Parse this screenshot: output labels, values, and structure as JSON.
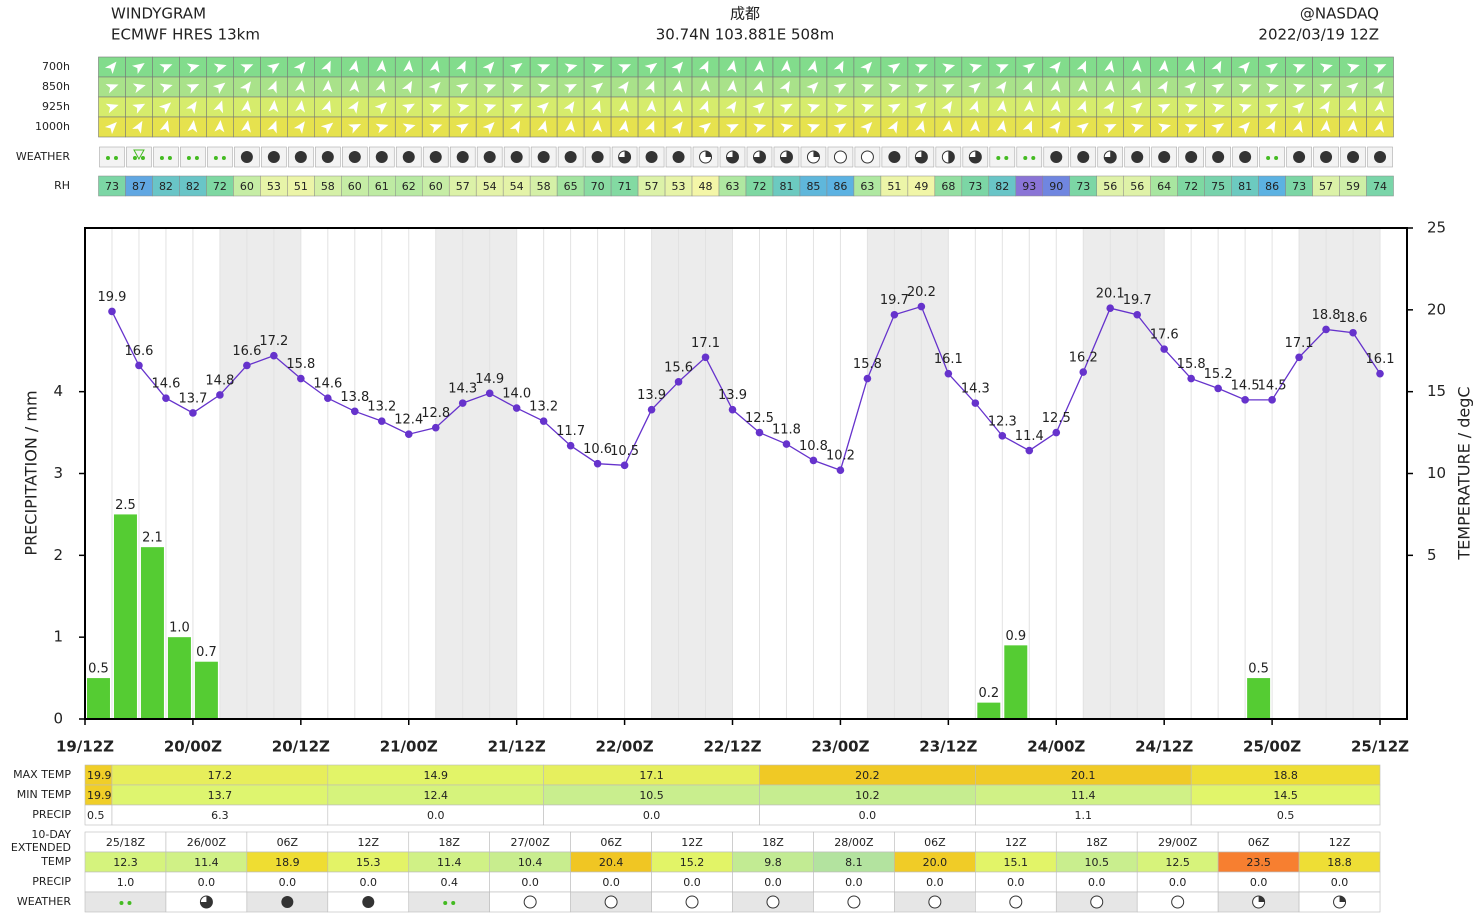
{
  "header": {
    "title": "WINDYGRAM",
    "model": "ECMWF HRES 13km",
    "location": "成都",
    "coords": "30.74N 103.881E 508m",
    "source": "@NASDAQ",
    "run": "2022/03/19 12Z"
  },
  "levels": [
    {
      "name": "700h",
      "color": "#82dc8c"
    },
    {
      "name": "850h",
      "color": "#a9e28a"
    },
    {
      "name": "925h",
      "color": "#d6ec6c"
    },
    {
      "name": "1000h",
      "color": "#e6e24e"
    }
  ],
  "weather_label": "WEATHER",
  "rh": {
    "label": "RH",
    "values": [
      73,
      87,
      82,
      82,
      72,
      60,
      53,
      51,
      58,
      60,
      61,
      62,
      60,
      57,
      54,
      54,
      58,
      65,
      70,
      71,
      57,
      53,
      48,
      63,
      72,
      81,
      85,
      86,
      63,
      51,
      49,
      68,
      73,
      82,
      93,
      90,
      73,
      56,
      56,
      64,
      72,
      75,
      81,
      86,
      73,
      57,
      59,
      74
    ]
  },
  "chart_data": {
    "type": "combo",
    "ylabel": "PRECIPITATION / mm",
    "y2label": "TEMPERATURE / degC",
    "xlim": [
      0,
      147
    ],
    "xticks": [
      {
        "value": 0,
        "label": "19/12Z"
      },
      {
        "value": 12,
        "label": "20/00Z"
      },
      {
        "value": 24,
        "label": "20/12Z"
      },
      {
        "value": 36,
        "label": "21/00Z"
      },
      {
        "value": 48,
        "label": "21/12Z"
      },
      {
        "value": 60,
        "label": "22/00Z"
      },
      {
        "value": 72,
        "label": "22/12Z"
      },
      {
        "value": 84,
        "label": "23/00Z"
      },
      {
        "value": 96,
        "label": "23/12Z"
      },
      {
        "value": 108,
        "label": "24/00Z"
      },
      {
        "value": 120,
        "label": "24/12Z"
      },
      {
        "value": 132,
        "label": "25/00Z"
      },
      {
        "value": 144,
        "label": "25/12Z"
      }
    ],
    "ylim": [
      0,
      6
    ],
    "yticks": [
      0,
      1,
      2,
      3,
      4
    ],
    "y2lim": [
      -5,
      25
    ],
    "y2ticks": [
      5,
      10,
      15,
      20,
      25
    ],
    "x": [
      3,
      6,
      9,
      12,
      15,
      18,
      21,
      24,
      27,
      30,
      33,
      36,
      39,
      42,
      45,
      48,
      51,
      54,
      57,
      60,
      63,
      66,
      69,
      72,
      75,
      78,
      81,
      84,
      87,
      90,
      93,
      96,
      99,
      102,
      105,
      108,
      111,
      114,
      117,
      120,
      123,
      126,
      129,
      132,
      135,
      138,
      141,
      144
    ],
    "series": [
      {
        "type": "bar",
        "color": "#55cc33",
        "values": [
          0.5,
          2.5,
          2.1,
          1.0,
          0.7,
          0,
          0,
          0,
          0,
          0,
          0,
          0,
          0,
          0,
          0,
          0,
          0,
          0,
          0,
          0,
          0,
          0,
          0,
          0,
          0,
          0,
          0,
          0,
          0,
          0,
          0,
          0,
          0,
          0.2,
          0.9,
          0,
          0,
          0,
          0,
          0,
          0,
          0,
          0,
          0.5,
          0,
          0,
          0,
          0
        ],
        "value_labels": [
          "0.5",
          "2.5",
          "2.1",
          "1.0",
          "0.7",
          null,
          null,
          null,
          null,
          null,
          null,
          null,
          null,
          null,
          null,
          null,
          null,
          null,
          null,
          null,
          null,
          null,
          null,
          null,
          null,
          null,
          null,
          null,
          null,
          null,
          null,
          null,
          null,
          "0.2",
          "0.9",
          null,
          null,
          null,
          null,
          null,
          null,
          null,
          null,
          "0.5",
          null,
          null,
          null,
          null
        ]
      },
      {
        "type": "line",
        "axis": "y2",
        "color": "#6633cc",
        "values": [
          19.9,
          16.6,
          14.6,
          13.7,
          14.8,
          16.6,
          17.2,
          15.8,
          14.6,
          13.8,
          13.2,
          12.4,
          12.8,
          14.3,
          14.9,
          14.0,
          13.2,
          11.7,
          10.6,
          10.5,
          13.9,
          15.6,
          17.1,
          13.9,
          12.5,
          11.8,
          10.8,
          10.2,
          15.8,
          19.7,
          20.2,
          16.1,
          14.3,
          12.3,
          11.4,
          12.5,
          16.2,
          20.1,
          19.7,
          17.6,
          15.8,
          15.2,
          14.5,
          14.5,
          17.1,
          18.8,
          18.6,
          16.1
        ],
        "value_labels": [
          "19.9",
          "16.6",
          "14.6",
          "13.7",
          "14.8",
          "16.6",
          "17.2",
          "15.8",
          "14.6",
          "13.8",
          "13.2",
          "12.4",
          "12.8",
          "14.3",
          "14.9",
          "14.0",
          "13.2",
          "11.7",
          "10.6",
          "10.5",
          "13.9",
          "15.6",
          "17.1",
          "13.9",
          "12.5",
          "11.8",
          "10.8",
          "10.2",
          "15.8",
          "19.7",
          "20.2",
          "16.1",
          "14.3",
          "12.3",
          "11.4",
          "12.5",
          "16.2",
          "20.1",
          "19.7",
          "17.6",
          "15.8",
          "15.2",
          "14.5",
          "14.5",
          "17.1",
          "18.8",
          "18.6",
          "16.1"
        ]
      }
    ]
  },
  "daily": {
    "rows": [
      {
        "label": "MAX TEMP",
        "cells": [
          "19.9",
          "17.2",
          "14.9",
          "17.1",
          "20.2",
          "20.1",
          "18.8"
        ]
      },
      {
        "label": "MIN TEMP",
        "cells": [
          "19.9",
          "13.7",
          "12.4",
          "10.5",
          "10.2",
          "11.4",
          "14.5"
        ]
      },
      {
        "label": "PRECIP",
        "cells": [
          "0.5",
          "6.3",
          "0.0",
          "0.0",
          "0.0",
          "1.1",
          "0.5"
        ]
      }
    ]
  },
  "extended": {
    "label_lines": [
      "10-DAY",
      "EXTENDED"
    ],
    "times": [
      "25/18Z",
      "26/00Z",
      "06Z",
      "12Z",
      "18Z",
      "27/00Z",
      "06Z",
      "12Z",
      "18Z",
      "28/00Z",
      "06Z",
      "12Z",
      "18Z",
      "29/00Z",
      "06Z",
      "12Z"
    ],
    "rows": [
      {
        "label": "TEMP",
        "cells": [
          "12.3",
          "11.4",
          "18.9",
          "15.3",
          "11.4",
          "10.4",
          "20.4",
          "15.2",
          "9.8",
          "8.1",
          "20.0",
          "15.1",
          "10.5",
          "12.5",
          "23.5",
          "18.8"
        ]
      },
      {
        "label": "PRECIP",
        "cells": [
          "1.0",
          "0.0",
          "0.0",
          "0.0",
          "0.4",
          "0.0",
          "0.0",
          "0.0",
          "0.0",
          "0.0",
          "0.0",
          "0.0",
          "0.0",
          "0.0",
          "0.0",
          "0.0"
        ]
      },
      {
        "label": "WEATHER"
      }
    ]
  }
}
